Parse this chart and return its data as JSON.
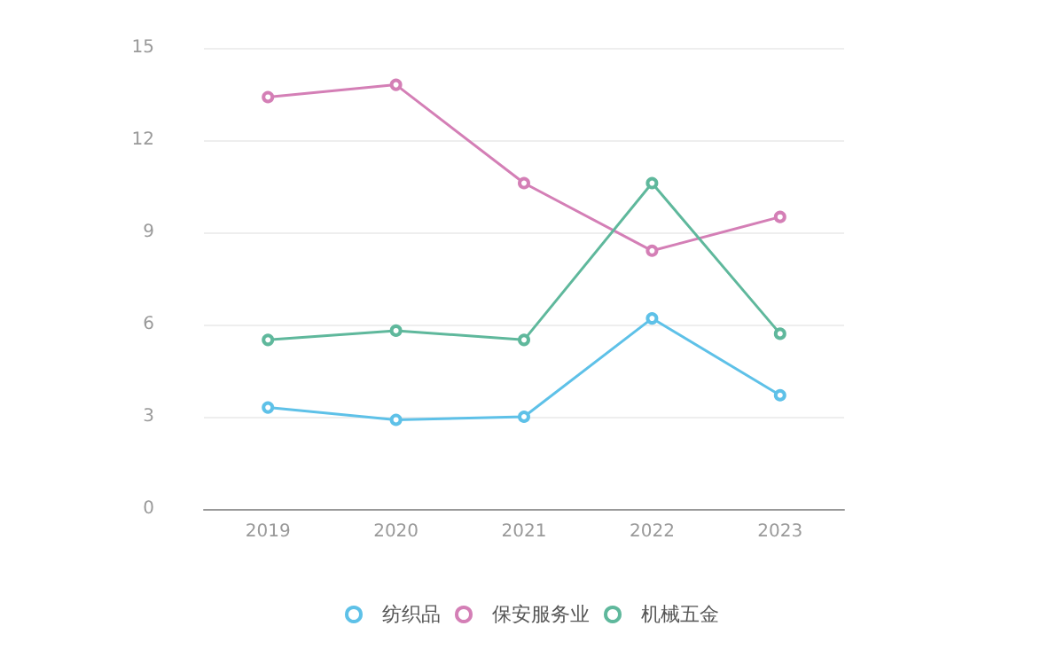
{
  "chart_data": {
    "type": "line",
    "categories": [
      "2019",
      "2020",
      "2021",
      "2022",
      "2023"
    ],
    "series": [
      {
        "name": "纺织品",
        "color": "#5ec1e8",
        "values": [
          3.3,
          2.9,
          3.0,
          6.2,
          3.7
        ]
      },
      {
        "name": "保安服务业",
        "color": "#d47fb6",
        "values": [
          13.4,
          13.8,
          10.6,
          8.4,
          9.5
        ]
      },
      {
        "name": "机械五金",
        "color": "#5fb89c",
        "values": [
          5.5,
          5.8,
          5.5,
          10.6,
          5.7
        ]
      }
    ],
    "ylim": [
      0,
      15
    ],
    "yticks": [
      0,
      3,
      6,
      9,
      12,
      15
    ],
    "grid": "y",
    "legend": "bottom",
    "marker": "circle",
    "line_style": "solid"
  }
}
